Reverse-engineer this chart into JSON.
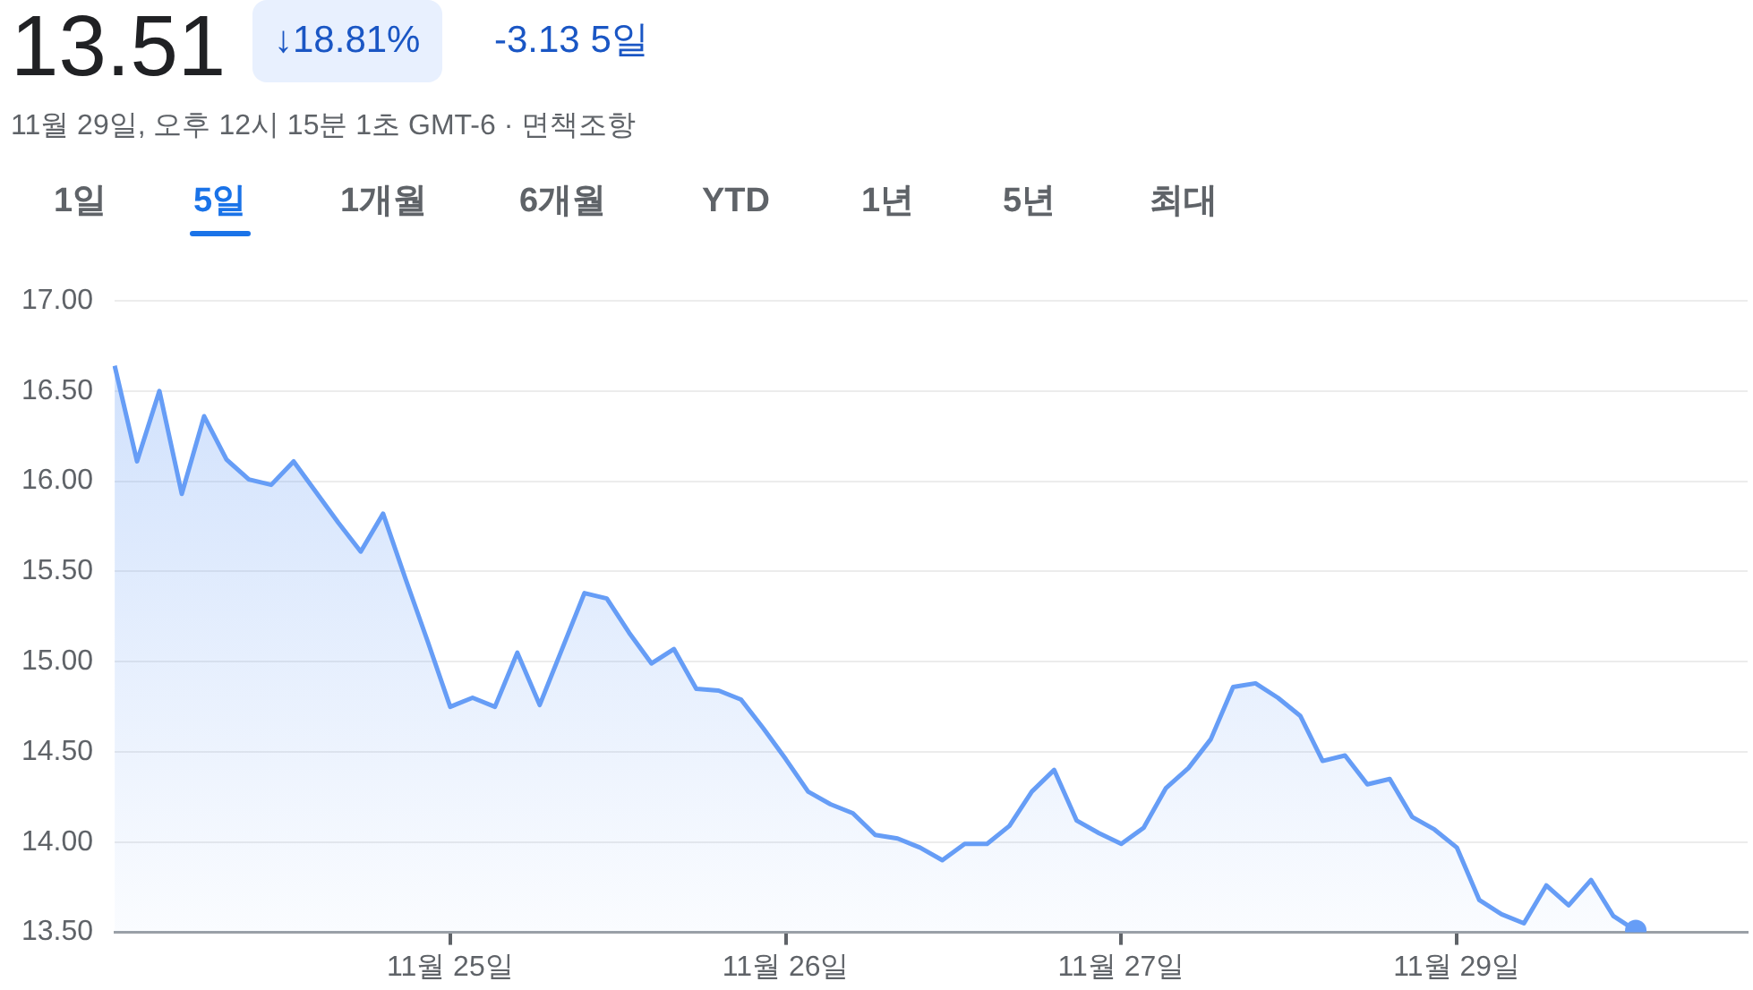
{
  "chart_data": {
    "type": "area",
    "title": "13.51",
    "subtitle": "11월 29일, 오후 12시 15분 1초 GMT-6 · 면책조항",
    "annotations": [
      "↓18.81%",
      "-3.13 5일",
      "1일",
      "5일",
      "1개월",
      "6개월",
      "YTD",
      "1년",
      "5년",
      "최대"
    ],
    "categories": [
      null,
      null,
      null,
      null,
      null,
      null,
      null,
      null,
      null,
      null,
      null,
      null,
      null,
      null,
      null,
      "11월 25일",
      null,
      null,
      null,
      null,
      null,
      null,
      null,
      null,
      null,
      null,
      null,
      null,
      null,
      null,
      "11월 26일",
      null,
      null,
      null,
      null,
      null,
      null,
      null,
      null,
      null,
      null,
      null,
      null,
      null,
      null,
      "11월 27일",
      null,
      null,
      null,
      null,
      null,
      null,
      null,
      null,
      null,
      null,
      null,
      null,
      null,
      null,
      "11월 29일",
      null,
      null,
      null,
      null,
      null,
      null,
      null,
      null,
      null,
      null,
      null,
      null,
      null
    ],
    "series": [
      {
        "color": "#669df6",
        "values": [
          16.64,
          16.11,
          16.5,
          15.93,
          16.36,
          16.12,
          16.01,
          15.98,
          16.11,
          15.94,
          15.77,
          15.61,
          15.82,
          15.46,
          15.11,
          14.75,
          14.8,
          14.75,
          15.05,
          14.76,
          15.07,
          15.38,
          15.35,
          15.16,
          14.99,
          15.07,
          14.85,
          14.84,
          14.79,
          14.63,
          14.46,
          14.28,
          14.21,
          14.16,
          14.04,
          14.02,
          13.97,
          13.9,
          13.99,
          13.99,
          14.09,
          14.28,
          14.4,
          14.12,
          14.05,
          13.99,
          14.08,
          14.3,
          14.41,
          14.57,
          14.86,
          14.88,
          14.8,
          14.7,
          14.45,
          14.48,
          14.32,
          14.35,
          14.14,
          14.07,
          13.97,
          13.68,
          13.6,
          13.55,
          13.76,
          13.65,
          13.79,
          13.59,
          13.51,
          null,
          null,
          null,
          null,
          null
        ]
      }
    ],
    "ylim": [
      13.5,
      17
    ],
    "yticks": [
      {
        "value": 13.5,
        "label": "13.50"
      },
      {
        "value": 14,
        "label": "14.00"
      },
      {
        "value": 14.5,
        "label": "14.50"
      },
      {
        "value": 15,
        "label": "15.00"
      },
      {
        "value": 15.5,
        "label": "15.50"
      },
      {
        "value": 16,
        "label": "16.00"
      },
      {
        "value": 16.5,
        "label": "16.50"
      },
      {
        "value": 17,
        "label": "17.00"
      }
    ],
    "grid": "y",
    "legend": false,
    "line_style": "solid"
  }
}
